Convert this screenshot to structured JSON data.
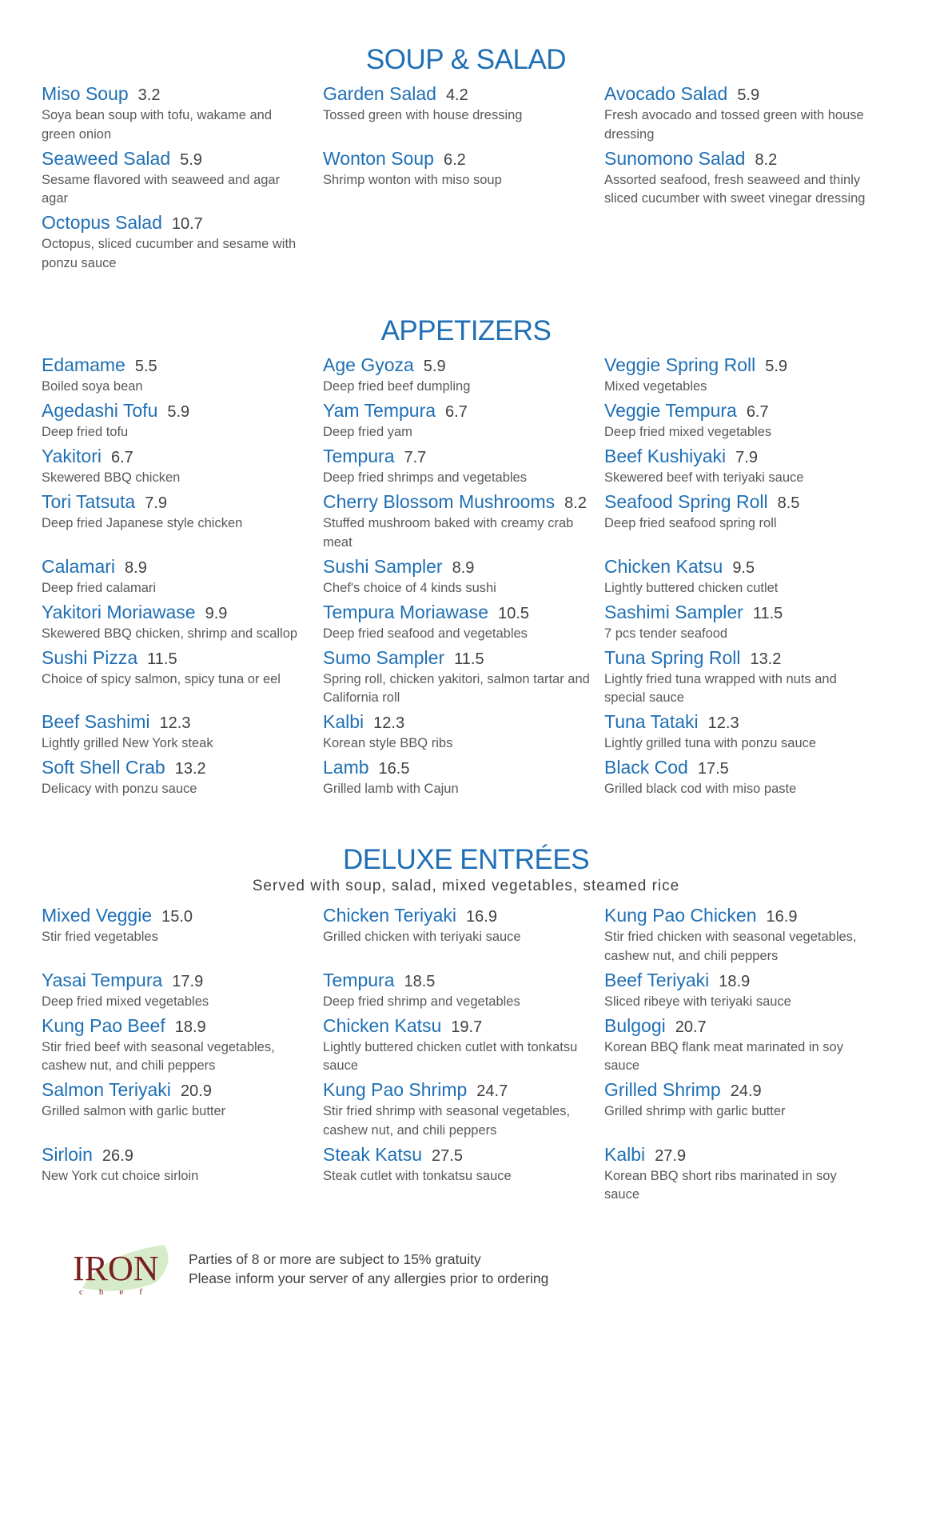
{
  "sections": [
    {
      "title": "SOUP & SALAD",
      "subtitle": "",
      "rows": [
        [
          {
            "name": "Miso Soup",
            "price": "3.2",
            "desc": "Soya bean soup with tofu, wakame and green onion"
          },
          {
            "name": "Garden Salad",
            "price": "4.2",
            "desc": "Tossed green with house dressing"
          },
          {
            "name": "Avocado Salad",
            "price": "5.9",
            "desc": "Fresh avocado and tossed green with house dressing"
          }
        ],
        [
          {
            "name": "Seaweed Salad",
            "price": "5.9",
            "desc": "Sesame flavored with seaweed and agar agar"
          },
          {
            "name": "Wonton Soup",
            "price": "6.2",
            "desc": "Shrimp wonton with miso soup"
          },
          {
            "name": "Sunomono Salad",
            "price": "8.2",
            "desc": "Assorted seafood, fresh seaweed and thinly sliced cucumber with sweet vinegar dressing"
          }
        ],
        [
          {
            "name": "Octopus Salad",
            "price": "10.7",
            "desc": "Octopus, sliced cucumber and sesame with ponzu sauce"
          }
        ]
      ]
    },
    {
      "title": "APPETIZERS",
      "subtitle": "",
      "rows": [
        [
          {
            "name": "Edamame",
            "price": "5.5",
            "desc": "Boiled soya bean"
          },
          {
            "name": "Age Gyoza",
            "price": "5.9",
            "desc": "Deep fried beef dumpling"
          },
          {
            "name": "Veggie Spring Roll",
            "price": "5.9",
            "desc": "Mixed vegetables"
          }
        ],
        [
          {
            "name": "Agedashi Tofu",
            "price": "5.9",
            "desc": "Deep fried tofu"
          },
          {
            "name": "Yam Tempura",
            "price": "6.7",
            "desc": "Deep fried yam"
          },
          {
            "name": "Veggie Tempura",
            "price": "6.7",
            "desc": "Deep fried mixed vegetables"
          }
        ],
        [
          {
            "name": "Yakitori",
            "price": "6.7",
            "desc": "Skewered BBQ chicken"
          },
          {
            "name": "Tempura",
            "price": "7.7",
            "desc": "Deep fried shrimps and vegetables"
          },
          {
            "name": "Beef Kushiyaki",
            "price": "7.9",
            "desc": "Skewered beef with teriyaki sauce"
          }
        ],
        [
          {
            "name": "Tori Tatsuta",
            "price": "7.9",
            "desc": "Deep fried Japanese style chicken"
          },
          {
            "name": "Cherry Blossom Mushrooms",
            "price": "8.2",
            "desc": "Stuffed mushroom baked with creamy crab meat"
          },
          {
            "name": "Seafood Spring Roll",
            "price": "8.5",
            "desc": "Deep fried seafood spring roll"
          }
        ],
        [
          {
            "name": "Calamari",
            "price": "8.9",
            "desc": "Deep fried calamari"
          },
          {
            "name": "Sushi Sampler",
            "price": "8.9",
            "desc": "Chef's choice of 4 kinds sushi"
          },
          {
            "name": "Chicken Katsu",
            "price": "9.5",
            "desc": "Lightly buttered chicken cutlet"
          }
        ],
        [
          {
            "name": "Yakitori Moriawase",
            "price": "9.9",
            "desc": "Skewered BBQ chicken, shrimp and scallop"
          },
          {
            "name": "Tempura Moriawase",
            "price": "10.5",
            "desc": "Deep fried seafood and vegetables"
          },
          {
            "name": "Sashimi Sampler",
            "price": "11.5",
            "desc": "7 pcs tender seafood"
          }
        ],
        [
          {
            "name": "Sushi Pizza",
            "price": "11.5",
            "desc": "Choice of spicy salmon, spicy tuna or eel"
          },
          {
            "name": "Sumo Sampler",
            "price": "11.5",
            "desc": "Spring roll, chicken yakitori, salmon tartar and California roll"
          },
          {
            "name": "Tuna Spring Roll",
            "price": "13.2",
            "desc": "Lightly fried tuna wrapped with nuts and special sauce"
          }
        ],
        [
          {
            "name": "Beef Sashimi",
            "price": "12.3",
            "desc": "Lightly grilled New York steak"
          },
          {
            "name": "Kalbi",
            "price": "12.3",
            "desc": "Korean style BBQ ribs"
          },
          {
            "name": "Tuna Tataki",
            "price": "12.3",
            "desc": "Lightly grilled tuna with ponzu sauce"
          }
        ],
        [
          {
            "name": "Soft Shell Crab",
            "price": "13.2",
            "desc": "Delicacy with ponzu sauce"
          },
          {
            "name": "Lamb",
            "price": "16.5",
            "desc": "Grilled lamb with Cajun"
          },
          {
            "name": "Black Cod",
            "price": "17.5",
            "desc": "Grilled black cod with miso paste"
          }
        ]
      ]
    },
    {
      "title": "DELUXE ENTRÉES",
      "subtitle": "Served with soup, salad, mixed vegetables, steamed rice",
      "rows": [
        [
          {
            "name": "Mixed Veggie",
            "price": "15.0",
            "desc": "Stir fried vegetables"
          },
          {
            "name": "Chicken Teriyaki",
            "price": "16.9",
            "desc": "Grilled chicken with teriyaki sauce"
          },
          {
            "name": "Kung Pao Chicken",
            "price": "16.9",
            "desc": "Stir fried chicken with seasonal vegetables, cashew nut, and chili peppers"
          }
        ],
        [
          {
            "name": "Yasai Tempura",
            "price": "17.9",
            "desc": "Deep fried mixed vegetables"
          },
          {
            "name": "Tempura",
            "price": "18.5",
            "desc": "Deep fried shrimp and vegetables"
          },
          {
            "name": "Beef Teriyaki",
            "price": "18.9",
            "desc": "Sliced ribeye with teriyaki sauce"
          }
        ],
        [
          {
            "name": "Kung Pao Beef",
            "price": "18.9",
            "desc": "Stir fried beef with seasonal vegetables, cashew nut, and chili peppers"
          },
          {
            "name": "Chicken Katsu",
            "price": "19.7",
            "desc": "Lightly buttered chicken cutlet with tonkatsu sauce"
          },
          {
            "name": "Bulgogi",
            "price": "20.7",
            "desc": "Korean BBQ flank meat marinated in soy sauce"
          }
        ],
        [
          {
            "name": "Salmon Teriyaki",
            "price": "20.9",
            "desc": "Grilled salmon with garlic butter"
          },
          {
            "name": "Kung Pao Shrimp",
            "price": "24.7",
            "desc": "Stir fried shrimp with seasonal vegetables, cashew nut, and chili peppers"
          },
          {
            "name": "Grilled Shrimp",
            "price": "24.9",
            "desc": "Grilled shrimp with garlic butter"
          }
        ],
        [
          {
            "name": "Sirloin",
            "price": "26.9",
            "desc": "New York cut choice sirloin"
          },
          {
            "name": "Steak Katsu",
            "price": "27.5",
            "desc": "Steak cutlet with tonkatsu sauce"
          },
          {
            "name": "Kalbi",
            "price": "27.9",
            "desc": "Korean BBQ short ribs marinated in soy sauce"
          }
        ]
      ]
    }
  ],
  "footer": {
    "logo": {
      "word": "IRON",
      "sub": "c h e f"
    },
    "lines": [
      "Parties of 8 or more are subject to 15% gratuity",
      "Please inform your server of any allergies prior to ordering"
    ]
  },
  "colors": {
    "accent": "#1f6fb5",
    "text": "#404040",
    "muted": "#595959",
    "logo_red": "#7a1f1f",
    "logo_green": "#b8dca0"
  }
}
